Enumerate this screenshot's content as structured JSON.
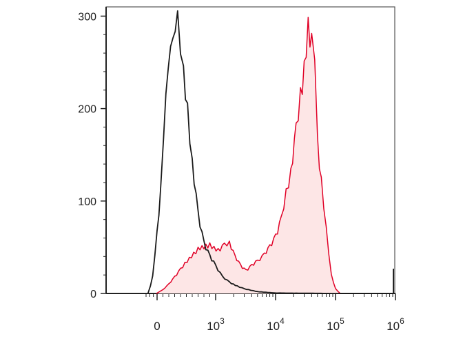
{
  "chart_data": {
    "type": "area",
    "title": "",
    "xlabel": "",
    "ylabel": "",
    "x_scale": "biexponential",
    "xlim": [
      -300,
      1000000
    ],
    "ylim": [
      0,
      310
    ],
    "grid": false,
    "legend": "none",
    "y_ticks": [
      {
        "value": 0,
        "label": "0"
      },
      {
        "value": 100,
        "label": "100"
      },
      {
        "value": 200,
        "label": "200"
      },
      {
        "value": 300,
        "label": "300"
      }
    ],
    "x_ticks": [
      {
        "value": 0,
        "base": "0",
        "exp": ""
      },
      {
        "value": 1000,
        "base": "10",
        "exp": "3"
      },
      {
        "value": 10000,
        "base": "10",
        "exp": "4"
      },
      {
        "value": 100000,
        "base": "10",
        "exp": "5"
      },
      {
        "value": 1000000,
        "base": "10",
        "exp": "6"
      }
    ],
    "series": [
      {
        "color": "#1a1a1a",
        "fill": "none",
        "points": [
          [
            -250,
            0
          ],
          [
            -180,
            8
          ],
          [
            -120,
            18
          ],
          [
            -60,
            40
          ],
          [
            0,
            65
          ],
          [
            60,
            110
          ],
          [
            110,
            160
          ],
          [
            150,
            205
          ],
          [
            190,
            235
          ],
          [
            230,
            255
          ],
          [
            270,
            268
          ],
          [
            310,
            272
          ],
          [
            350,
            290
          ],
          [
            400,
            250
          ],
          [
            450,
            235
          ],
          [
            520,
            200
          ],
          [
            600,
            140
          ],
          [
            700,
            85
          ],
          [
            800,
            55
          ],
          [
            900,
            40
          ],
          [
            1000,
            30
          ],
          [
            1300,
            18
          ],
          [
            1700,
            12
          ],
          [
            2300,
            8
          ],
          [
            3000,
            5
          ],
          [
            5000,
            2
          ],
          [
            10000,
            0.5
          ],
          [
            100000,
            0
          ],
          [
            1000000,
            0
          ]
        ]
      },
      {
        "color": "#e00026",
        "fill": "#fde6e6",
        "points": [
          [
            -20,
            0
          ],
          [
            100,
            4
          ],
          [
            200,
            10
          ],
          [
            300,
            18
          ],
          [
            400,
            26
          ],
          [
            550,
            38
          ],
          [
            700,
            48
          ],
          [
            900,
            52
          ],
          [
            1100,
            47
          ],
          [
            1400,
            52
          ],
          [
            1700,
            55
          ],
          [
            2100,
            40
          ],
          [
            2600,
            30
          ],
          [
            3200,
            25
          ],
          [
            4000,
            30
          ],
          [
            5000,
            35
          ],
          [
            6500,
            42
          ],
          [
            8000,
            50
          ],
          [
            10000,
            62
          ],
          [
            12500,
            80
          ],
          [
            15000,
            110
          ],
          [
            18000,
            130
          ],
          [
            22000,
            175
          ],
          [
            26000,
            215
          ],
          [
            30000,
            240
          ],
          [
            35000,
            290
          ],
          [
            40000,
            270
          ],
          [
            45000,
            240
          ],
          [
            50000,
            165
          ],
          [
            58000,
            120
          ],
          [
            70000,
            70
          ],
          [
            85000,
            20
          ],
          [
            100000,
            5
          ],
          [
            120000,
            0
          ]
        ]
      }
    ]
  }
}
